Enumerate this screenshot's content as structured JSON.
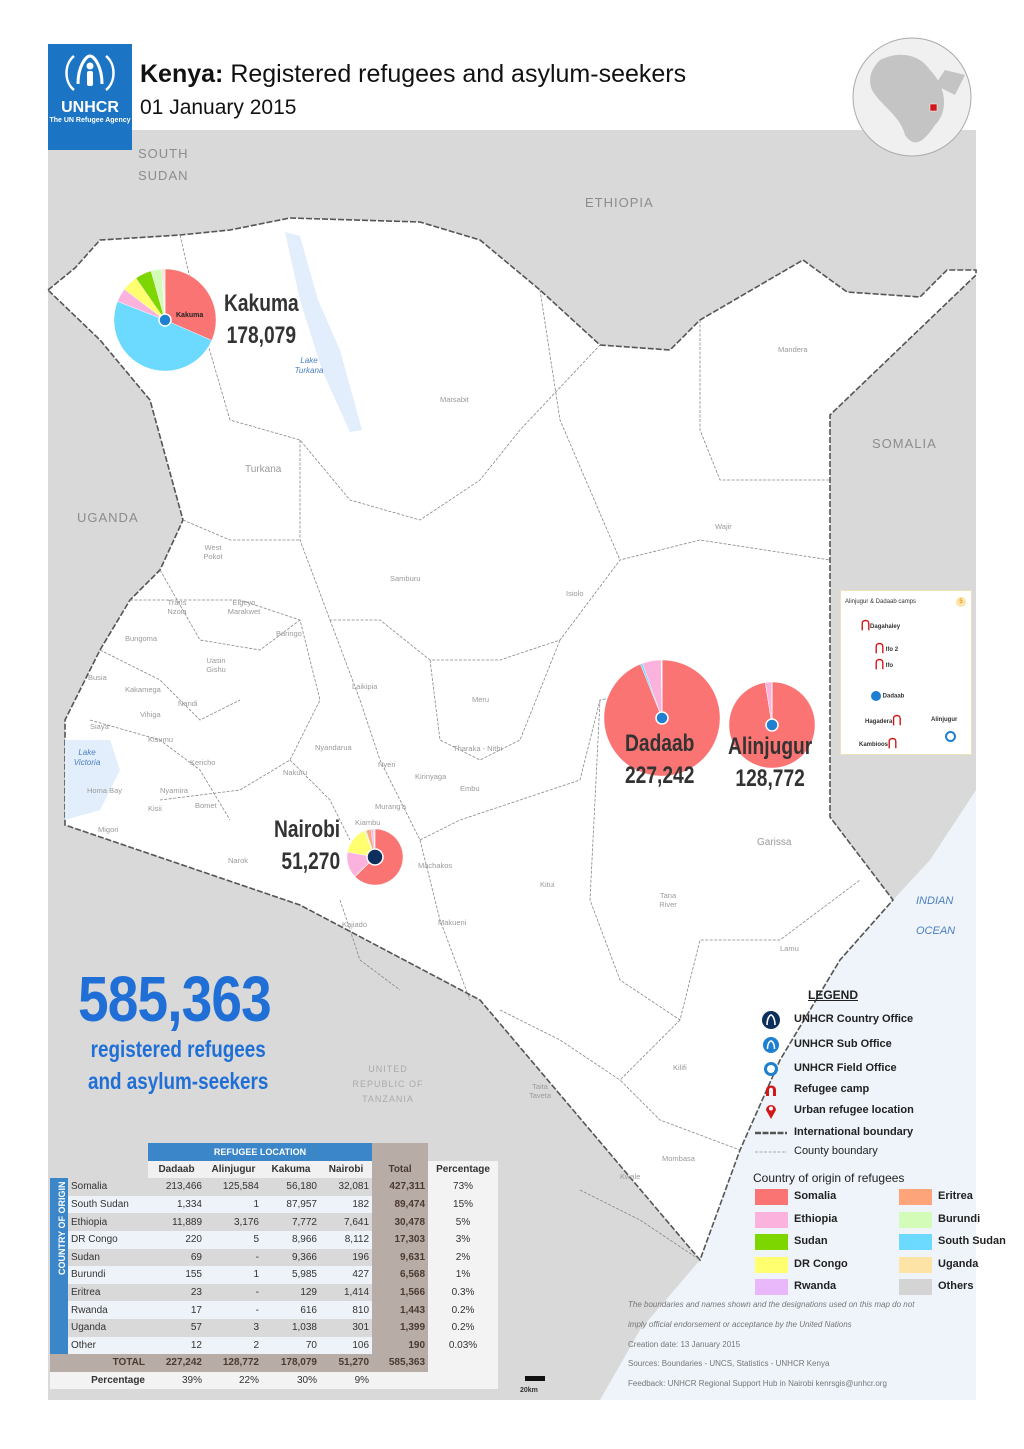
{
  "header": {
    "logo_text": "UNHCR",
    "logo_sub": "The UN Refugee Agency",
    "title_country": "Kenya:",
    "title_rest": " Registered refugees and asylum-seekers",
    "date": "01 January 2015"
  },
  "map": {
    "countries": [
      "SOUTH SUDAN",
      "ETHIOPIA",
      "SOMALIA",
      "UGANDA",
      "UNITED REPUBLIC OF TANZANIA"
    ],
    "ocean": [
      "INDIAN",
      "OCEAN"
    ],
    "lakes": [
      "Lake Turkana",
      "Lake Victoria"
    ],
    "counties": [
      "Turkana",
      "Marsabit",
      "Mandera",
      "Wajir",
      "West Pokot",
      "Samburu",
      "Isiolo",
      "Trans Nzoia",
      "Elgeyo Marakwet",
      "Bungoma",
      "Baringo",
      "Uasin Gishu",
      "Busia",
      "Kakamega",
      "Nandi",
      "Vihiga",
      "Laikipia",
      "Meru",
      "Siaya",
      "Kisumu",
      "Nyandarua",
      "Tharaka - Nithi",
      "Kericho",
      "Nyeri",
      "Kirinyaga",
      "Embu",
      "Homa Bay",
      "Nyamira",
      "Kisii",
      "Bomet",
      "Migori",
      "Murang'a",
      "Kiambu",
      "Nakuru",
      "Narok",
      "Machakos",
      "Kitui",
      "Garissa",
      "Tana River",
      "Kajiado",
      "Makueni",
      "Lamu",
      "Kilifi",
      "Taita Taveta",
      "Mombasa",
      "Kwale"
    ],
    "scale_label": "20km"
  },
  "pies": [
    {
      "name": "Kakuma",
      "total": "178,079",
      "column": 2,
      "marker": "Kakuma"
    },
    {
      "name": "Dadaab",
      "total": "227,242",
      "column": 0
    },
    {
      "name": "Alinjugur",
      "total": "128,772",
      "column": 1
    },
    {
      "name": "Nairobi",
      "total": "51,270",
      "column": 3
    }
  ],
  "summary": {
    "total": "585,363",
    "line1": "registered refugees",
    "line2": "and asylum-seekers"
  },
  "table": {
    "group_header": "REFUGEE LOCATION",
    "side_header": "COUNTRY OF ORIGIN",
    "columns": [
      "Dadaab",
      "Alinjugur",
      "Kakuma",
      "Nairobi",
      "Total",
      "Percentage"
    ],
    "rows": [
      {
        "country": "Somalia",
        "values": [
          "213,466",
          "125,584",
          "56,180",
          "32,081"
        ],
        "total": "427,311",
        "pct": "73%"
      },
      {
        "country": "South Sudan",
        "values": [
          "1,334",
          "1",
          "87,957",
          "182"
        ],
        "total": "89,474",
        "pct": "15%"
      },
      {
        "country": "Ethiopia",
        "values": [
          "11,889",
          "3,176",
          "7,772",
          "7,641"
        ],
        "total": "30,478",
        "pct": "5%"
      },
      {
        "country": "DR Congo",
        "values": [
          "220",
          "5",
          "8,966",
          "8,112"
        ],
        "total": "17,303",
        "pct": "3%"
      },
      {
        "country": "Sudan",
        "values": [
          "69",
          "-",
          "9,366",
          "196"
        ],
        "total": "9,631",
        "pct": "2%"
      },
      {
        "country": "Burundi",
        "values": [
          "155",
          "1",
          "5,985",
          "427"
        ],
        "total": "6,568",
        "pct": "1%"
      },
      {
        "country": "Eritrea",
        "values": [
          "23",
          "-",
          "129",
          "1,414"
        ],
        "total": "1,566",
        "pct": "0.3%"
      },
      {
        "country": "Rwanda",
        "values": [
          "17",
          "-",
          "616",
          "810"
        ],
        "total": "1,443",
        "pct": "0.2%"
      },
      {
        "country": "Uganda",
        "values": [
          "57",
          "3",
          "1,038",
          "301"
        ],
        "total": "1,399",
        "pct": "0.2%"
      },
      {
        "country": "Other",
        "values": [
          "12",
          "2",
          "70",
          "106"
        ],
        "total": "190",
        "pct": "0.03%"
      }
    ],
    "total_label": "TOTAL",
    "totals": [
      "227,242",
      "128,772",
      "178,079",
      "51,270"
    ],
    "grand_total": "585,363",
    "pct_label": "Percentage",
    "pcts": [
      "39%",
      "22%",
      "30%",
      "9%"
    ]
  },
  "inset": {
    "title": "Alinjugur & Dadaab camps",
    "badge": "5",
    "items": [
      "Dagahaley",
      "Ifo 2",
      "Ifo",
      "Dadaab",
      "Hagadera",
      "Alinjugur",
      "Kambioos"
    ]
  },
  "legend": {
    "title": "LEGEND",
    "items": [
      {
        "label": "UNHCR Country Office",
        "icon": "unhcr-country-office-icon"
      },
      {
        "label": "UNHCR Sub Office",
        "icon": "unhcr-sub-office-icon"
      },
      {
        "label": "UNHCR Field Office",
        "icon": "unhcr-field-office-icon"
      },
      {
        "label": "Refugee camp",
        "icon": "refugee-camp-icon"
      },
      {
        "label": "Urban refugee location",
        "icon": "map-pin-icon"
      },
      {
        "label": "International boundary",
        "icon": "international-boundary-line"
      },
      {
        "label": "County boundary",
        "icon": "county-boundary-line"
      }
    ],
    "origin_title": "Country of origin of refugees",
    "origins": [
      {
        "label": "Somalia",
        "color": "#fb7474"
      },
      {
        "label": "Eritrea",
        "color": "#fda47a"
      },
      {
        "label": "Ethiopia",
        "color": "#fbb3de"
      },
      {
        "label": "Burundi",
        "color": "#d3fcb8"
      },
      {
        "label": "Sudan",
        "color": "#7ed600"
      },
      {
        "label": "South Sudan",
        "color": "#6cd9ff"
      },
      {
        "label": "DR Congo",
        "color": "#ffff70"
      },
      {
        "label": "Uganda",
        "color": "#fde3a6"
      },
      {
        "label": "Rwanda",
        "color": "#e9b8fb"
      },
      {
        "label": "Others",
        "color": "#d4d4d4"
      }
    ]
  },
  "notes": {
    "disclaimer1": "The boundaries and names shown and the designations used on this map do not",
    "disclaimer2": "imply official endorsement or acceptance by the United Nations",
    "creation": "Creation date: 13 January 2015",
    "sources": "Sources: Boundaries - UNCS, Statistics - UNHCR Kenya",
    "feedback": "Feedback: UNHCR Regional Support Hub in Nairobi kenrsgis@unhcr.org"
  },
  "colors": {
    "brand": "#1b75c4",
    "headline": "#1f6fd6",
    "land_outside": "#d9d9d9",
    "ocean": "#eef4fa"
  }
}
